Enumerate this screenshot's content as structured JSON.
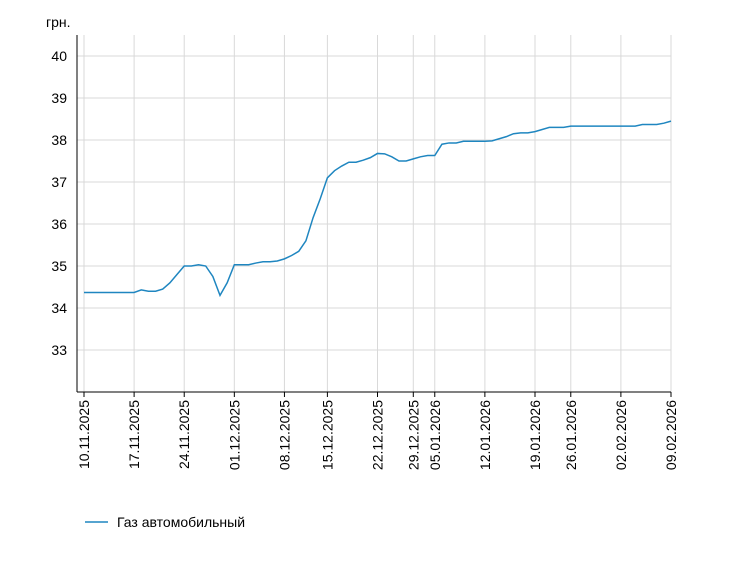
{
  "chart_data": {
    "type": "line",
    "y_label": "грн.",
    "categories": [
      "10.11.2025",
      null,
      null,
      null,
      null,
      null,
      null,
      "17.11.2025",
      null,
      null,
      null,
      null,
      null,
      null,
      "24.11.2025",
      null,
      null,
      null,
      null,
      null,
      null,
      "01.12.2025",
      null,
      null,
      null,
      null,
      null,
      null,
      "08.12.2025",
      null,
      null,
      null,
      null,
      null,
      "15.12.2025",
      null,
      null,
      null,
      null,
      null,
      null,
      "22.12.2025",
      null,
      null,
      null,
      null,
      "29.12.2025",
      null,
      null,
      "05.01.2026",
      null,
      null,
      null,
      null,
      null,
      null,
      "12.01.2026",
      null,
      null,
      null,
      null,
      null,
      null,
      "19.01.2026",
      null,
      null,
      null,
      null,
      "26.01.2026",
      null,
      null,
      null,
      null,
      null,
      null,
      "02.02.2026",
      null,
      null,
      null,
      null,
      null,
      null,
      "09.02.2026"
    ],
    "series": [
      {
        "name": "Газ автомобильный",
        "color": "#1f86c0",
        "values": [
          34.37,
          34.37,
          34.37,
          34.37,
          34.37,
          34.37,
          34.37,
          34.37,
          34.43,
          34.4,
          34.4,
          34.45,
          34.6,
          34.8,
          35.0,
          35.0,
          35.03,
          35.0,
          34.75,
          34.3,
          34.6,
          35.03,
          35.03,
          35.03,
          35.07,
          35.1,
          35.1,
          35.12,
          35.17,
          35.25,
          35.35,
          35.6,
          36.15,
          36.6,
          37.1,
          37.27,
          37.38,
          37.47,
          37.47,
          37.52,
          37.58,
          37.68,
          37.67,
          37.6,
          37.5,
          37.5,
          37.55,
          37.6,
          37.63,
          37.63,
          37.9,
          37.93,
          37.93,
          37.97,
          37.97,
          37.97,
          37.97,
          37.98,
          38.03,
          38.08,
          38.15,
          38.17,
          38.17,
          38.2,
          38.25,
          38.3,
          38.3,
          38.3,
          38.33,
          38.33,
          38.33,
          38.33,
          38.33,
          38.33,
          38.33,
          38.33,
          38.33,
          38.33,
          38.37,
          38.37,
          38.37,
          38.4,
          38.45
        ]
      }
    ],
    "ylim": [
      32,
      40.5
    ],
    "yticks": [
      33,
      34,
      35,
      36,
      37,
      38,
      39,
      40
    ],
    "grid": true
  }
}
